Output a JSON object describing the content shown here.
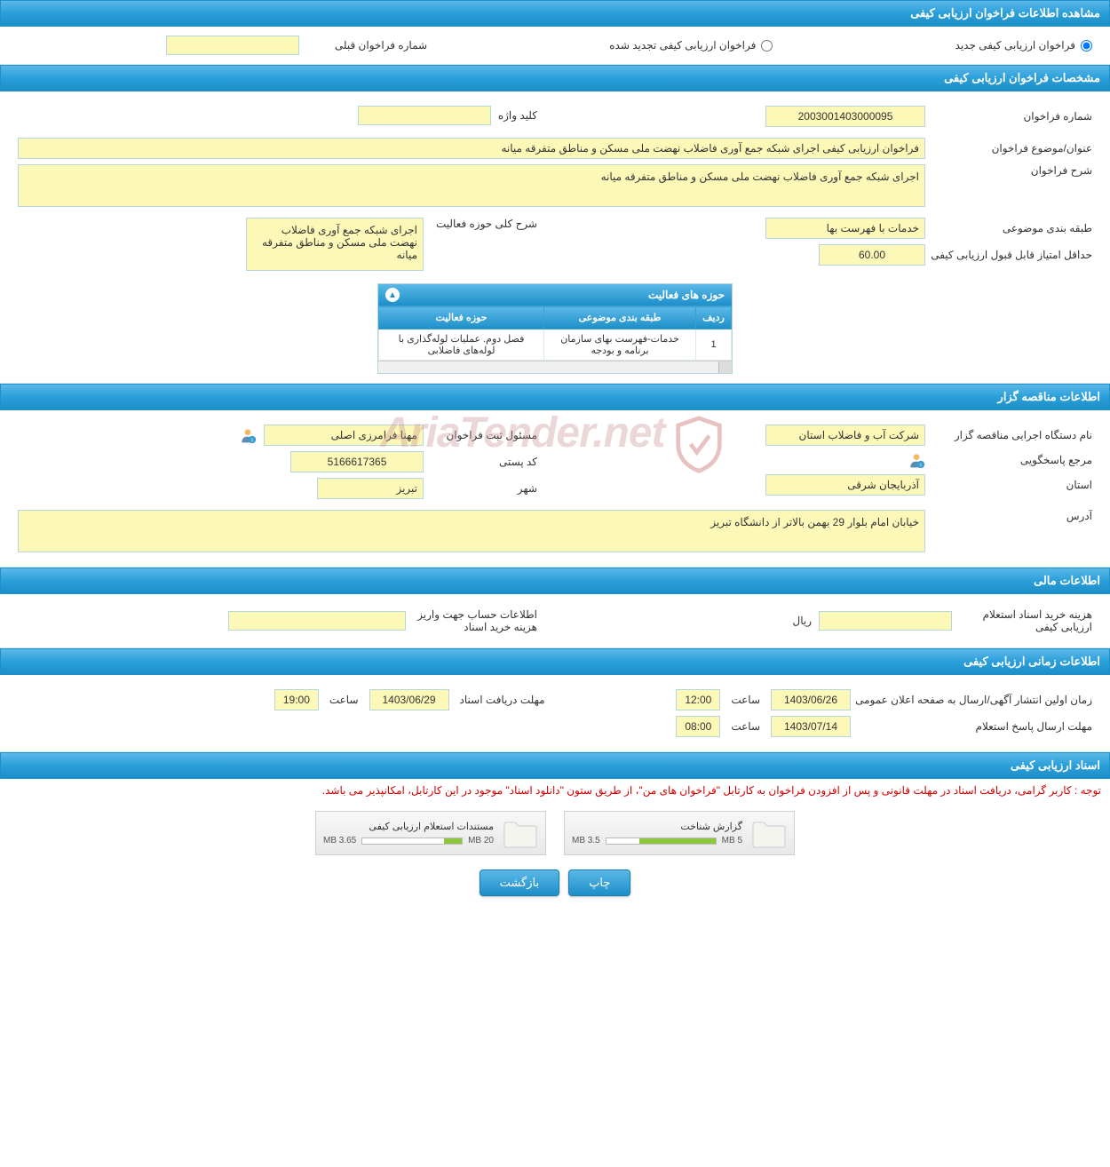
{
  "headers": {
    "main": "مشاهده اطلاعات فراخوان ارزیابی کیفی",
    "spec": "مشخصات فراخوان ارزیابی کیفی",
    "owner": "اطلاعات مناقصه گزار",
    "financial": "اطلاعات مالی",
    "timing": "اطلاعات زمانی ارزیابی کیفی",
    "docs": "اسناد ارزیابی کیفی"
  },
  "type_section": {
    "new_label": "فراخوان ارزیابی کیفی جدید",
    "renewed_label": "فراخوان ارزیابی کیفی تجدید شده",
    "prev_number_label": "شماره فراخوان قبلی",
    "prev_number": ""
  },
  "spec": {
    "number_label": "شماره فراخوان",
    "number": "2003001403000095",
    "keyword_label": "کلید واژه",
    "keyword": "",
    "title_label": "عنوان/موضوع فراخوان",
    "title": "فراخوان ارزیابی کیفی اجرای شبکه جمع آوری فاضلاب نهضت ملی مسکن و مناطق متفرقه میانه",
    "desc_label": "شرح فراخوان",
    "desc": "اجرای شبکه جمع آوری فاضلاب نهضت ملی مسکن و مناطق متفرقه میانه",
    "category_label": "طبقه بندی موضوعی",
    "category": "خدمات با فهرست بها",
    "scope_label": "شرح کلی حوزه فعالیت",
    "scope": "اجرای شبکه جمع آوری فاضلاب نهضت ملی مسکن و مناطق متفرقه میانه",
    "min_score_label": "حداقل امتیاز قابل قبول ارزیابی کیفی",
    "min_score": "60.00",
    "activities_title": "حوزه های فعالیت",
    "table": {
      "cols": {
        "row": "ردیف",
        "category": "طبقه بندی موضوعی",
        "scope": "حوزه فعالیت"
      },
      "row1": {
        "idx": "1",
        "cat": "خدمات-فهرست بهای سازمان برنامه و بودجه",
        "scope": "فصل دوم. عملیات لوله‌گذاری با لوله‌های فاضلابی"
      }
    }
  },
  "owner": {
    "org_label": "نام دستگاه اجرایی مناقصه گزار",
    "org": "شرکت آب و فاضلاب استان",
    "registrar_label": "مسئول ثبت فراخوان",
    "registrar": "مهنا فرامرزی اصلی",
    "responder_label": "مرجع پاسخگویی",
    "zip_label": "کد پستی",
    "zip": "5166617365",
    "province_label": "استان",
    "province": "آذربایجان شرقی",
    "city_label": "شهر",
    "city": "تبریز",
    "address_label": "آدرس",
    "address": "خیابان امام بلوار 29 بهمن بالاتر از دانشگاه تبریز"
  },
  "financial": {
    "cost_label": "هزینه خرید اسناد استعلام ارزیابی کیفی",
    "cost": "",
    "currency": "ریال",
    "account_label": "اطلاعات حساب جهت واریز هزینه خرید اسناد",
    "account": ""
  },
  "timing": {
    "publish_label": "زمان اولین انتشار آگهی/ارسال به صفحه اعلان عمومی",
    "publish_date": "1403/06/26",
    "hour_label": "ساعت",
    "publish_time": "12:00",
    "receive_label": "مهلت دریافت اسناد",
    "receive_date": "1403/06/29",
    "receive_time": "19:00",
    "response_label": "مهلت ارسال پاسخ استعلام",
    "response_date": "1403/07/14",
    "response_time": "08:00"
  },
  "docs": {
    "notice": "توجه : کاربر گرامی، دریافت اسناد در مهلت قانونی و پس از افزودن فراخوان به کارتابل \"فراخوان های من\"، از طریق ستون \"دانلود اسناد\" موجود در این کارتابل، امکانپذیر می باشد.",
    "file1_title": "گزارش شناخت",
    "file1_used": "3.5 MB",
    "file1_total": "5 MB",
    "file1_pct": 70,
    "file2_title": "مستندات استعلام ارزیابی کیفی",
    "file2_used": "3.65 MB",
    "file2_total": "20 MB",
    "file2_pct": 18
  },
  "buttons": {
    "print": "چاپ",
    "back": "بازگشت"
  },
  "watermark": "AriaTender.net"
}
